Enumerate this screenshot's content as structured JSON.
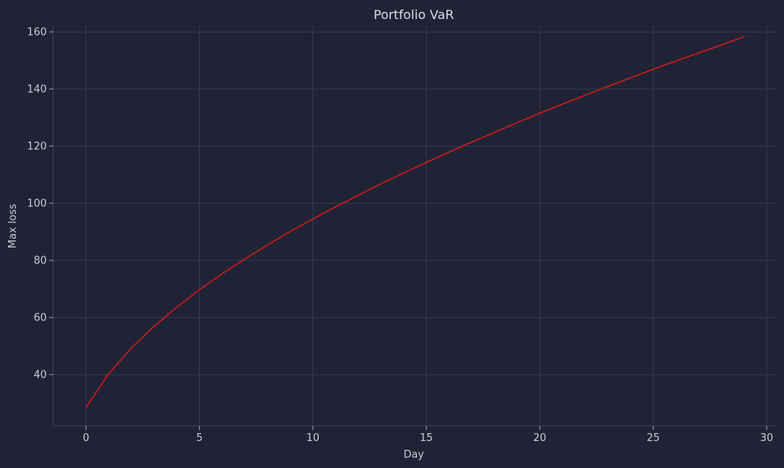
{
  "chart_data": {
    "type": "line",
    "title": "Portfolio VaR",
    "xlabel": "Day",
    "ylabel": "Max loss",
    "xlim": [
      -1.45,
      30.45
    ],
    "ylim": [
      22,
      162
    ],
    "x_ticks": [
      0,
      5,
      10,
      15,
      20,
      25,
      30
    ],
    "y_ticks": [
      40,
      60,
      80,
      100,
      120,
      140,
      160
    ],
    "grid": true,
    "legend": "none",
    "series": [
      {
        "color": "#cc1a1a",
        "x": [
          0,
          1,
          2,
          3,
          4,
          5,
          6,
          7,
          8,
          9,
          10,
          11,
          12,
          13,
          14,
          15,
          16,
          17,
          18,
          19,
          20,
          21,
          22,
          23,
          24,
          25,
          26,
          27,
          28,
          29
        ],
        "y": [
          28.5,
          40.3,
          49.3,
          56.9,
          63.6,
          69.7,
          75.3,
          80.5,
          85.4,
          90.1,
          94.5,
          98.7,
          102.8,
          106.8,
          110.6,
          114.3,
          117.9,
          121.4,
          124.8,
          128.2,
          131.5,
          134.7,
          137.8,
          140.9,
          143.9,
          146.9,
          149.8,
          152.6,
          155.4,
          158.3
        ]
      }
    ]
  }
}
